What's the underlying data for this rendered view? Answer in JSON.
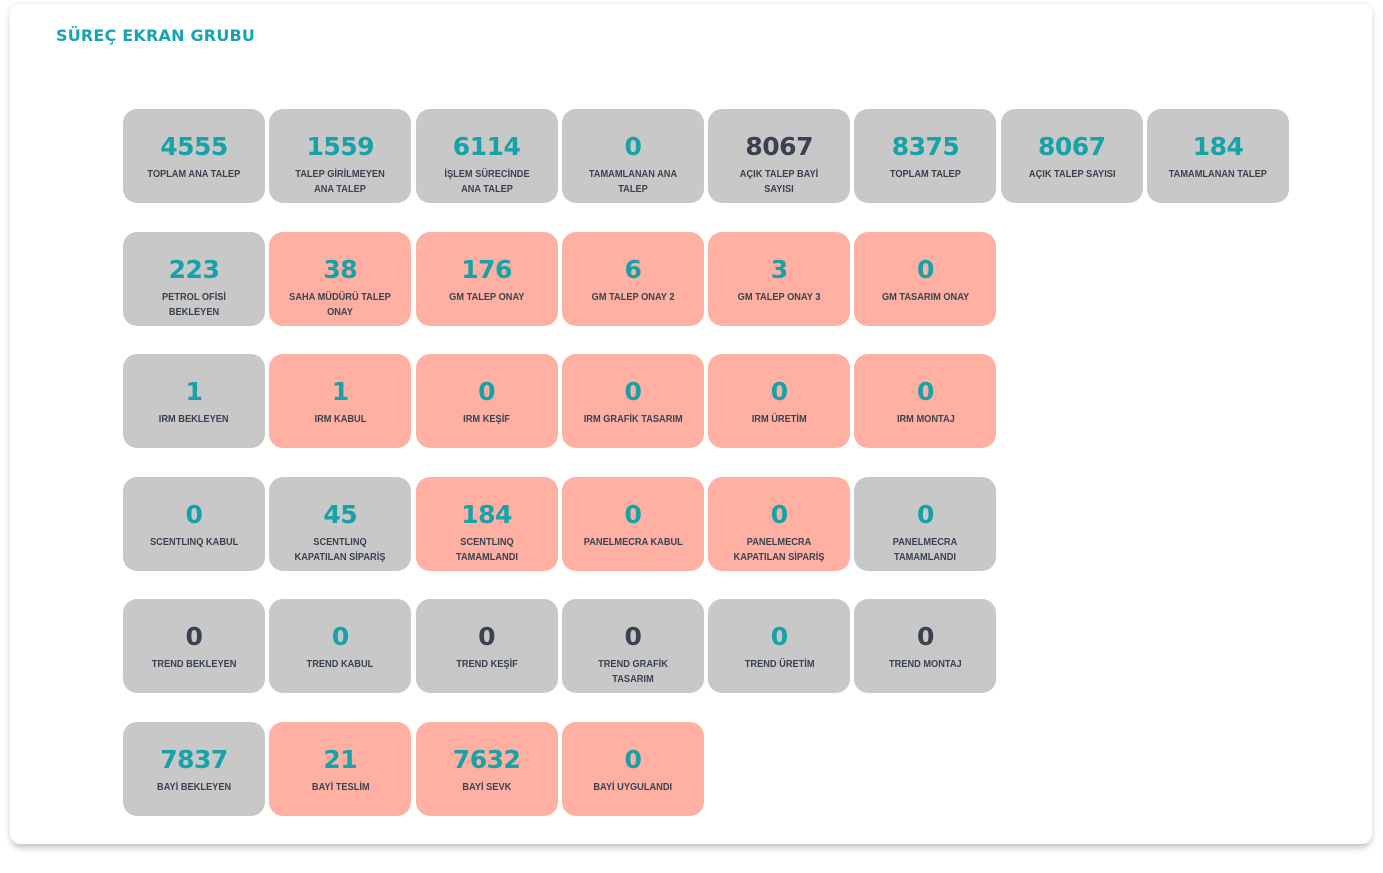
{
  "title": "SÜREÇ EKRAN GRUBU",
  "colors": {
    "accent": "#17a2b8",
    "card_gray": "#c8c8c8",
    "card_salmon": "#ffb0a3",
    "value_teal": "#17a2a8",
    "value_dark": "#3a4250"
  },
  "rows": [
    [
      {
        "value": "4555",
        "label": "TOPLAM ANA TALEP",
        "style": "gray",
        "value_color": "teal"
      },
      {
        "value": "1559",
        "label": "TALEP GİRİLMEYEN ANA TALEP",
        "style": "gray",
        "value_color": "teal"
      },
      {
        "value": "6114",
        "label": "İŞLEM SÜRECİNDE ANA TALEP",
        "style": "gray",
        "value_color": "teal"
      },
      {
        "value": "0",
        "label": "TAMAMLANAN ANA TALEP",
        "style": "gray",
        "value_color": "teal"
      },
      {
        "value": "8067",
        "label": "AÇIK TALEP BAYİ SAYISI",
        "style": "gray",
        "value_color": "dark"
      },
      {
        "value": "8375",
        "label": "TOPLAM TALEP",
        "style": "gray",
        "value_color": "teal"
      },
      {
        "value": "8067",
        "label": "AÇIK TALEP SAYISI",
        "style": "gray",
        "value_color": "teal"
      },
      {
        "value": "184",
        "label": "TAMAMLANAN TALEP",
        "style": "gray",
        "value_color": "teal"
      }
    ],
    [
      {
        "value": "223",
        "label": "PETROL OFİSİ BEKLEYEN",
        "style": "gray",
        "value_color": "teal"
      },
      {
        "value": "38",
        "label": "SAHA MÜDÜRÜ TALEP ONAY",
        "style": "salmon",
        "value_color": "teal"
      },
      {
        "value": "176",
        "label": "GM TALEP ONAY",
        "style": "salmon",
        "value_color": "teal"
      },
      {
        "value": "6",
        "label": "GM TALEP ONAY 2",
        "style": "salmon",
        "value_color": "teal"
      },
      {
        "value": "3",
        "label": "GM TALEP ONAY 3",
        "style": "salmon",
        "value_color": "teal"
      },
      {
        "value": "0",
        "label": "GM TASARIM ONAY",
        "style": "salmon",
        "value_color": "teal"
      }
    ],
    [
      {
        "value": "1",
        "label": "IRM BEKLEYEN",
        "style": "gray",
        "value_color": "teal"
      },
      {
        "value": "1",
        "label": "IRM KABUL",
        "style": "salmon",
        "value_color": "teal"
      },
      {
        "value": "0",
        "label": "IRM KEŞİF",
        "style": "salmon",
        "value_color": "teal"
      },
      {
        "value": "0",
        "label": "IRM GRAFİK TASARIM",
        "style": "salmon",
        "value_color": "teal"
      },
      {
        "value": "0",
        "label": "IRM ÜRETİM",
        "style": "salmon",
        "value_color": "teal"
      },
      {
        "value": "0",
        "label": "IRM MONTAJ",
        "style": "salmon",
        "value_color": "teal"
      }
    ],
    [
      {
        "value": "0",
        "label": "SCENTLINQ KABUL",
        "style": "gray",
        "value_color": "teal"
      },
      {
        "value": "45",
        "label": "SCENTLINQ KAPATILAN SİPARİŞ",
        "style": "gray",
        "value_color": "teal"
      },
      {
        "value": "184",
        "label": "SCENTLINQ TAMAMLANDI",
        "style": "salmon",
        "value_color": "teal"
      },
      {
        "value": "0",
        "label": "PANELMECRA KABUL",
        "style": "salmon",
        "value_color": "teal"
      },
      {
        "value": "0",
        "label": "PANELMECRA KAPATILAN SİPARİŞ",
        "style": "salmon",
        "value_color": "teal"
      },
      {
        "value": "0",
        "label": "PANELMECRA TAMAMLANDI",
        "style": "gray",
        "value_color": "teal"
      }
    ],
    [
      {
        "value": "0",
        "label": "TREND BEKLEYEN",
        "style": "gray",
        "value_color": "dark"
      },
      {
        "value": "0",
        "label": "TREND KABUL",
        "style": "gray",
        "value_color": "teal"
      },
      {
        "value": "0",
        "label": "TREND KEŞİF",
        "style": "gray",
        "value_color": "dark"
      },
      {
        "value": "0",
        "label": "TREND GRAFİK TASARIM",
        "style": "gray",
        "value_color": "dark"
      },
      {
        "value": "0",
        "label": "TREND ÜRETİM",
        "style": "gray",
        "value_color": "teal"
      },
      {
        "value": "0",
        "label": "TREND MONTAJ",
        "style": "gray",
        "value_color": "dark"
      }
    ],
    [
      {
        "value": "7837",
        "label": "BAYİ BEKLEYEN",
        "style": "gray",
        "value_color": "teal"
      },
      {
        "value": "21",
        "label": "BAYİ TESLİM",
        "style": "salmon",
        "value_color": "teal"
      },
      {
        "value": "7632",
        "label": "BAYİ SEVK",
        "style": "salmon",
        "value_color": "teal"
      },
      {
        "value": "0",
        "label": "BAYİ UYGULANDI",
        "style": "salmon",
        "value_color": "teal"
      }
    ]
  ]
}
